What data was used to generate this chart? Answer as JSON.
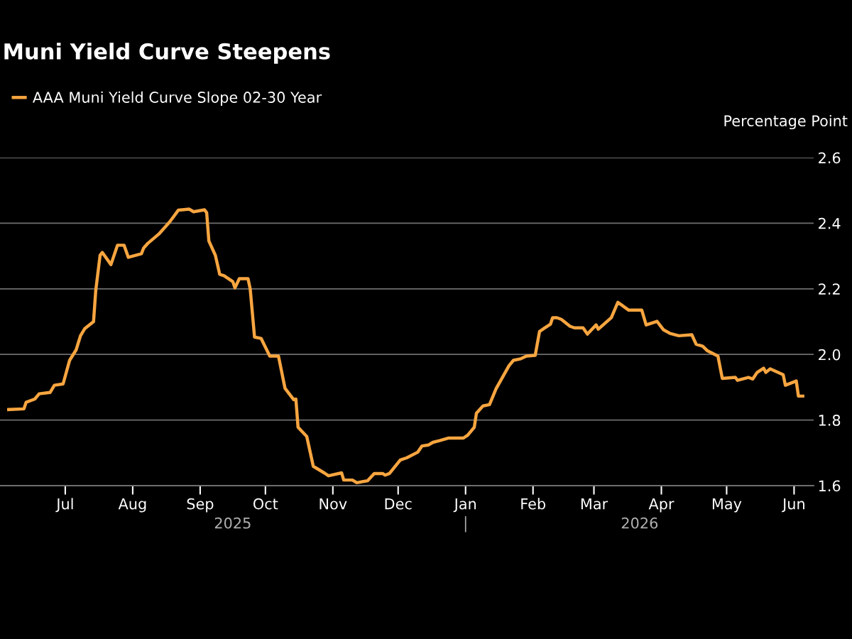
{
  "chart_data": {
    "type": "line",
    "title": "Muni Yield Curve Steepens",
    "ylabel": "Percentage Point",
    "legend": "top left",
    "grid": "y",
    "marker": "none",
    "line_style": "solid",
    "xlim": [
      "2025-06-01",
      "2026-06-10"
    ],
    "xticks": [
      {
        "value": "2025-07-01",
        "label": "Jul"
      },
      {
        "value": "2025-08-01",
        "label": "Aug"
      },
      {
        "value": "2025-09-01",
        "label": "Sep"
      },
      {
        "value": "2025-10-01",
        "label": "Oct"
      },
      {
        "value": "2025-11-01",
        "label": "Nov"
      },
      {
        "value": "2025-12-01",
        "label": "Dec"
      },
      {
        "value": "2026-01-01",
        "label": "Jan"
      },
      {
        "value": "2026-02-01",
        "label": "Feb"
      },
      {
        "value": "2026-03-01",
        "label": "Mar"
      },
      {
        "value": "2026-04-01",
        "label": "Apr"
      },
      {
        "value": "2026-05-01",
        "label": "May"
      },
      {
        "value": "2026-06-01",
        "label": "Jun"
      }
    ],
    "ylim": [
      1.6,
      2.6
    ],
    "yticks": [
      1.6,
      1.8,
      {
        "value": 2.0,
        "label": "2.0"
      },
      2.2,
      2.4,
      2.6
    ],
    "annotations": [
      "2025",
      "2026"
    ],
    "series": [
      {
        "name": "AAA Muni Yield Curve Slope 02-30 Year",
        "color": "#f7a540",
        "x": [
          "2025-06-05",
          "2025-06-12",
          "2025-06-13",
          "2025-06-17",
          "2025-06-19",
          "2025-06-24",
          "2025-06-26",
          "2025-06-30",
          "2025-07-03",
          "2025-07-06",
          "2025-07-08",
          "2025-07-10",
          "2025-07-14",
          "2025-07-15",
          "2025-07-17",
          "2025-07-18",
          "2025-07-22",
          "2025-07-25",
          "2025-07-28",
          "2025-07-30",
          "2025-08-05",
          "2025-08-06",
          "2025-08-08",
          "2025-08-13",
          "2025-08-18",
          "2025-08-20",
          "2025-08-22",
          "2025-08-27",
          "2025-08-29",
          "2025-09-03",
          "2025-09-04",
          "2025-09-05",
          "2025-09-08",
          "2025-09-10",
          "2025-09-12",
          "2025-09-16",
          "2025-09-17",
          "2025-09-19",
          "2025-09-23",
          "2025-09-24",
          "2025-09-26",
          "2025-09-29",
          "2025-10-03",
          "2025-10-07",
          "2025-10-10",
          "2025-10-14",
          "2025-10-15",
          "2025-10-16",
          "2025-10-20",
          "2025-10-23",
          "2025-10-28",
          "2025-10-30",
          "2025-11-05",
          "2025-11-06",
          "2025-11-10",
          "2025-11-12",
          "2025-11-17",
          "2025-11-20",
          "2025-11-24",
          "2025-11-25",
          "2025-11-27",
          "2025-12-02",
          "2025-12-05",
          "2025-12-10",
          "2025-12-12",
          "2025-12-15",
          "2025-12-17",
          "2025-12-20",
          "2025-12-24",
          "2025-12-31",
          "2026-01-02",
          "2026-01-05",
          "2026-01-06",
          "2026-01-09",
          "2026-01-12",
          "2026-01-15",
          "2026-01-21",
          "2026-01-23",
          "2026-01-26",
          "2026-01-29",
          "2026-02-02",
          "2026-02-04",
          "2026-02-06",
          "2026-02-09",
          "2026-02-10",
          "2026-02-12",
          "2026-02-14",
          "2026-02-18",
          "2026-02-20",
          "2026-02-24",
          "2026-02-26",
          "2026-03-02",
          "2026-03-03",
          "2026-03-09",
          "2026-03-12",
          "2026-03-17",
          "2026-03-23",
          "2026-03-25",
          "2026-03-30",
          "2026-04-02",
          "2026-04-05",
          "2026-04-09",
          "2026-04-15",
          "2026-04-17",
          "2026-04-20",
          "2026-04-22",
          "2026-04-27",
          "2026-04-29",
          "2026-05-05",
          "2026-05-06",
          "2026-05-11",
          "2026-05-13",
          "2026-05-15",
          "2026-05-18",
          "2026-05-19",
          "2026-05-21",
          "2026-05-27",
          "2026-05-28",
          "2026-06-02",
          "2026-06-03",
          "2026-06-05"
        ],
        "values": [
          1.832,
          1.834,
          1.854,
          1.864,
          1.88,
          1.884,
          1.906,
          1.91,
          1.982,
          2.014,
          2.057,
          2.079,
          2.1,
          2.194,
          2.302,
          2.311,
          2.274,
          2.333,
          2.333,
          2.296,
          2.307,
          2.324,
          2.339,
          2.367,
          2.404,
          2.422,
          2.44,
          2.443,
          2.435,
          2.441,
          2.432,
          2.346,
          2.302,
          2.244,
          2.24,
          2.222,
          2.203,
          2.231,
          2.231,
          2.2,
          2.053,
          2.049,
          1.995,
          1.995,
          1.897,
          1.862,
          1.864,
          1.778,
          1.75,
          1.659,
          1.639,
          1.63,
          1.639,
          1.617,
          1.617,
          1.609,
          1.615,
          1.637,
          1.637,
          1.632,
          1.637,
          1.678,
          1.685,
          1.702,
          1.721,
          1.724,
          1.732,
          1.737,
          1.745,
          1.745,
          1.754,
          1.778,
          1.821,
          1.843,
          1.847,
          1.895,
          1.966,
          1.982,
          1.986,
          1.995,
          1.997,
          2.07,
          2.079,
          2.092,
          2.112,
          2.112,
          2.107,
          2.086,
          2.081,
          2.081,
          2.062,
          2.09,
          2.077,
          2.112,
          2.159,
          2.135,
          2.135,
          2.09,
          2.101,
          2.075,
          2.064,
          2.057,
          2.06,
          2.031,
          2.025,
          2.012,
          1.995,
          1.927,
          1.93,
          1.921,
          1.93,
          1.925,
          1.945,
          1.958,
          1.945,
          1.956,
          1.938,
          1.906,
          1.919,
          1.873,
          1.873
        ]
      }
    ]
  }
}
